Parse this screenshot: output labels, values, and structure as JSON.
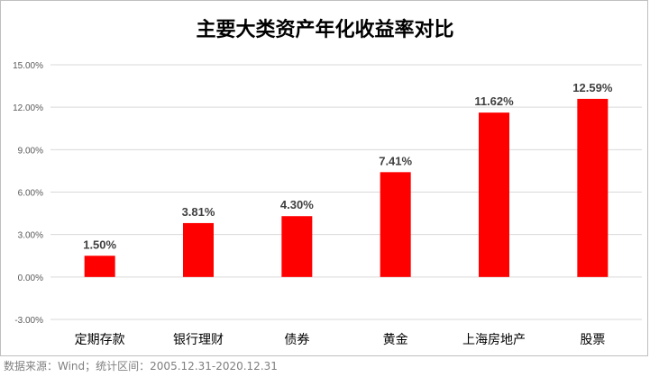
{
  "chart_data": {
    "type": "bar",
    "title": "主要大类资产年化收益率对比",
    "categories": [
      "定期存款",
      "银行理财",
      "债券",
      "黄金",
      "上海房地产",
      "股票"
    ],
    "values": [
      1.5,
      3.81,
      4.3,
      7.41,
      11.62,
      12.59
    ],
    "data_labels": [
      "1.50%",
      "3.81%",
      "4.30%",
      "7.41%",
      "11.62%",
      "12.59%"
    ],
    "ylim": [
      -3,
      15
    ],
    "yticks": [
      -3,
      0,
      3,
      6,
      9,
      12,
      15
    ],
    "ytick_labels": [
      "-3.00%",
      "0.00%",
      "3.00%",
      "6.00%",
      "9.00%",
      "12.00%",
      "15.00%"
    ],
    "xlabel": "",
    "ylabel": "",
    "grid": true,
    "bar_color": "#ff0000",
    "grid_color": "#d9d9d9"
  },
  "source_note": "数据来源：Wind；统计区间：2005.12.31-2020.12.31"
}
